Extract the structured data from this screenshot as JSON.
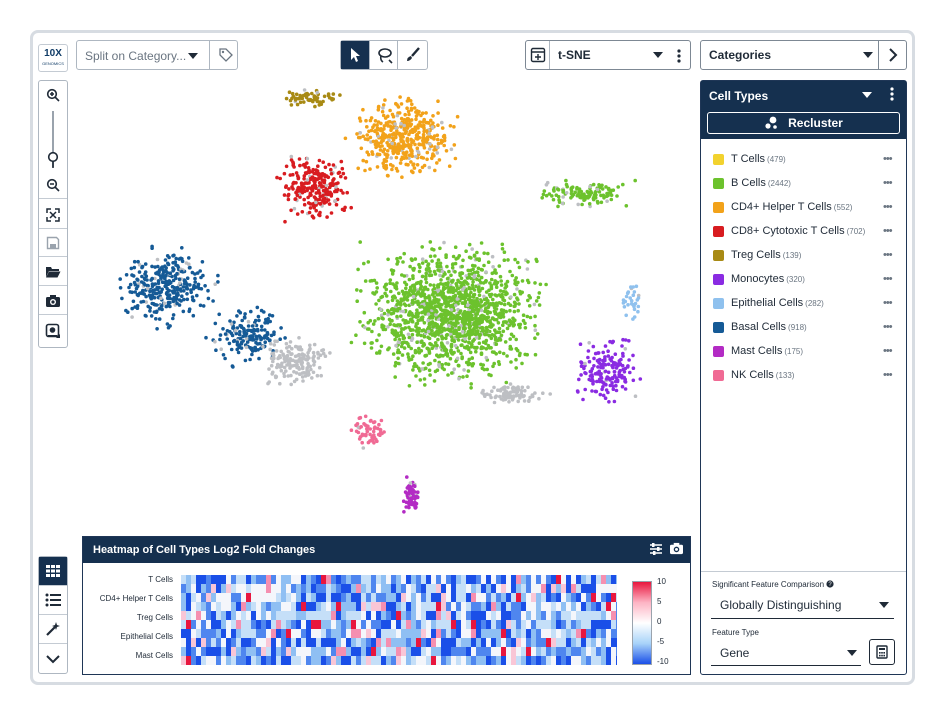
{
  "app": {
    "logo_text": "10X",
    "logo_subtext": "GENOMICS"
  },
  "toolbar": {
    "split_placeholder": "Split on Category...",
    "projection": "t-SNE",
    "category_selector": "Categories",
    "tools": [
      "pointer-icon",
      "lasso-icon",
      "paintbrush-icon"
    ],
    "active_tool": "pointer-icon"
  },
  "left_toolbar": {
    "buttons": [
      "zoom-in-icon",
      "zoom-slider-icon",
      "zoom-out-icon",
      "fit-screen-icon",
      "save-icon",
      "folder-open-icon",
      "camera-icon",
      "selection-icon"
    ]
  },
  "left_bottom_toolbar": {
    "buttons": [
      "grid-icon",
      "list-icon",
      "wand-icon",
      "chevron-down-icon"
    ],
    "active": "grid-icon"
  },
  "cell_panel": {
    "title": "Cell Types",
    "recluster_label": "Recluster",
    "categories": [
      {
        "name": "T Cells",
        "count": "(479)",
        "color": "#f2d22e"
      },
      {
        "name": "B Cells",
        "count": "(2442)",
        "color": "#6cc22d"
      },
      {
        "name": "CD4+ Helper T Cells",
        "count": "(552)",
        "color": "#f2a21a"
      },
      {
        "name": "CD8+ Cytotoxic T Cells",
        "count": "(702)",
        "color": "#d81c20"
      },
      {
        "name": "Treg Cells",
        "count": "(139)",
        "color": "#a88a14"
      },
      {
        "name": "Monocytes",
        "count": "(320)",
        "color": "#8a2be2"
      },
      {
        "name": "Epithelial Cells",
        "count": "(282)",
        "color": "#8fc1ee"
      },
      {
        "name": "Basal Cells",
        "count": "(918)",
        "color": "#155a96"
      },
      {
        "name": "Mast Cells",
        "count": "(175)",
        "color": "#b32bc4"
      },
      {
        "name": "NK Cells",
        "count": "(133)",
        "color": "#f06a94"
      }
    ],
    "sig_label": "Significant Feature Comparison",
    "sig_value": "Globally Distinguishing",
    "feature_type_label": "Feature Type",
    "feature_type_value": "Gene"
  },
  "heatmap": {
    "title": "Heatmap of Cell Types Log2 Fold Changes",
    "row_labels": [
      "T Cells",
      "CD4+ Helper T Cells",
      "Treg Cells",
      "Epithelial Cells",
      "Mast Cells"
    ],
    "colorbar_ticks": [
      "10",
      "5",
      "0",
      "-5",
      "-10"
    ]
  }
}
